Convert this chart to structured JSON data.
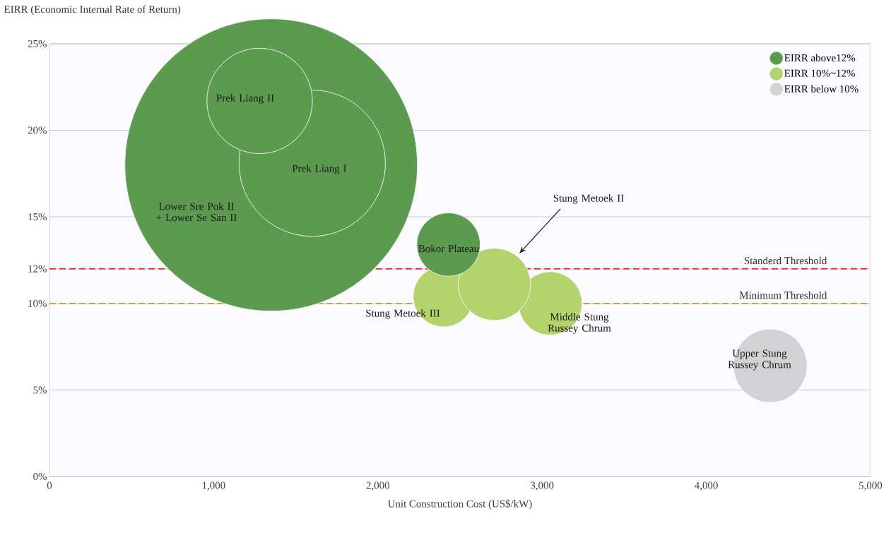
{
  "chart_data": {
    "type": "bubble",
    "xlabel": "Unit Construction Cost (US$/kW)",
    "ylabel": "EIRR (Economic Internal Rate of Return)",
    "xlim": [
      0,
      5000
    ],
    "ylim": [
      0,
      25
    ],
    "xticks": [
      0,
      {
        "value": 1000,
        "label": "1,000"
      },
      {
        "value": 2000,
        "label": "2,000"
      },
      {
        "value": 3000,
        "label": "3,000"
      },
      {
        "value": 4000,
        "label": "4,000"
      },
      {
        "value": 5000,
        "label": "5,000"
      }
    ],
    "yticks": [
      {
        "value": 0,
        "label": "0%"
      },
      {
        "value": 5,
        "label": "5%"
      },
      {
        "value": 10,
        "label": "10%"
      },
      {
        "value": 12,
        "label": "12%"
      },
      {
        "value": 15,
        "label": "15%"
      },
      {
        "value": 20,
        "label": "20%"
      },
      {
        "value": 25,
        "label": "25%"
      }
    ],
    "grid": "y",
    "legend": "top right",
    "series": [
      {
        "name": "EIRR above12%",
        "color": "#5c9a50",
        "x": [
          1350,
          1600,
          1280,
          2430
        ],
        "values": [
          18.0,
          18.1,
          21.7,
          13.4
        ],
        "sizes": [
          1,
          0.25,
          0.13,
          0.047
        ]
      },
      {
        "name": "EIRR 10%~12%",
        "color": "#b3d36c",
        "x": [
          3050,
          2400,
          2710
        ],
        "values": [
          10.0,
          10.4,
          11.1
        ],
        "sizes": [
          0.047,
          0.043,
          0.061
        ]
      },
      {
        "name": "EIRR below 10%",
        "color": "#d2d2d4",
        "x": [
          4390
        ],
        "values": [
          6.4
        ],
        "sizes": [
          0.063
        ]
      }
    ],
    "ref_lines": [
      {
        "axis": "y",
        "value": 12,
        "label": "Standerd Threshold",
        "color": "#e8303a",
        "line_style": "dashed"
      },
      {
        "axis": "y",
        "value": 10,
        "label": "Minimum Threshold",
        "color": "#e8902a",
        "line_style": "dashed"
      }
    ],
    "annotations": [
      "Prek Liang II",
      "Prek Liang I",
      "Lower Sre Pok II + Lower Se San II",
      "Bokor Plateau",
      "Stung Metoek II",
      "Stung Metoek III",
      "Middle Stung Russey Chrum",
      "Upper Stung Russey Chrum"
    ]
  }
}
